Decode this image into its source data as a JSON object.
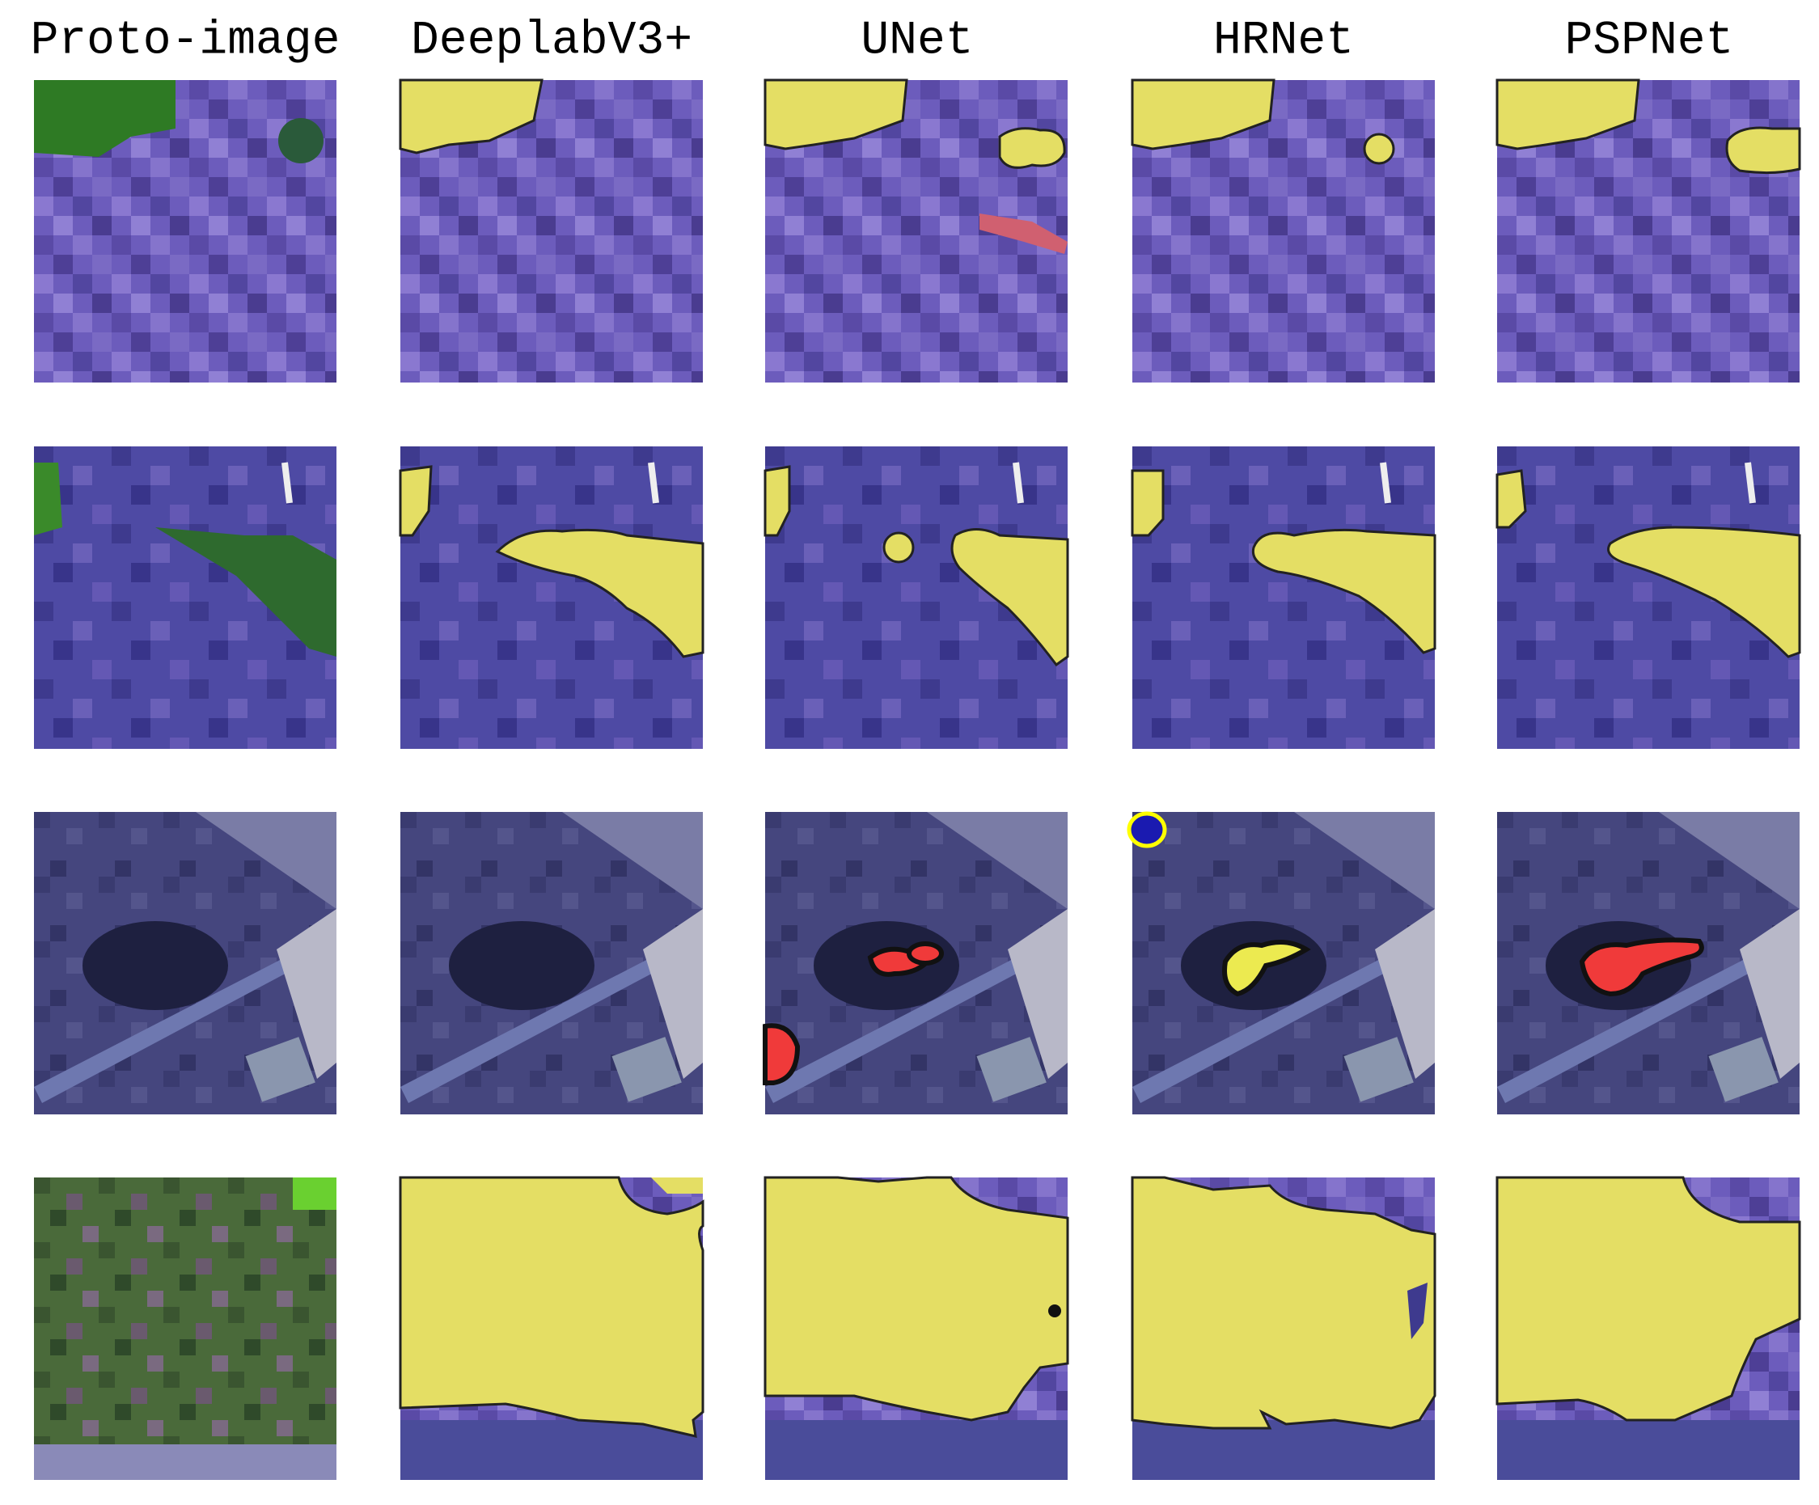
{
  "columns": [
    "Proto-image",
    "DeeplabV3+",
    "UNet",
    "HRNet",
    "PSPNet"
  ]
}
